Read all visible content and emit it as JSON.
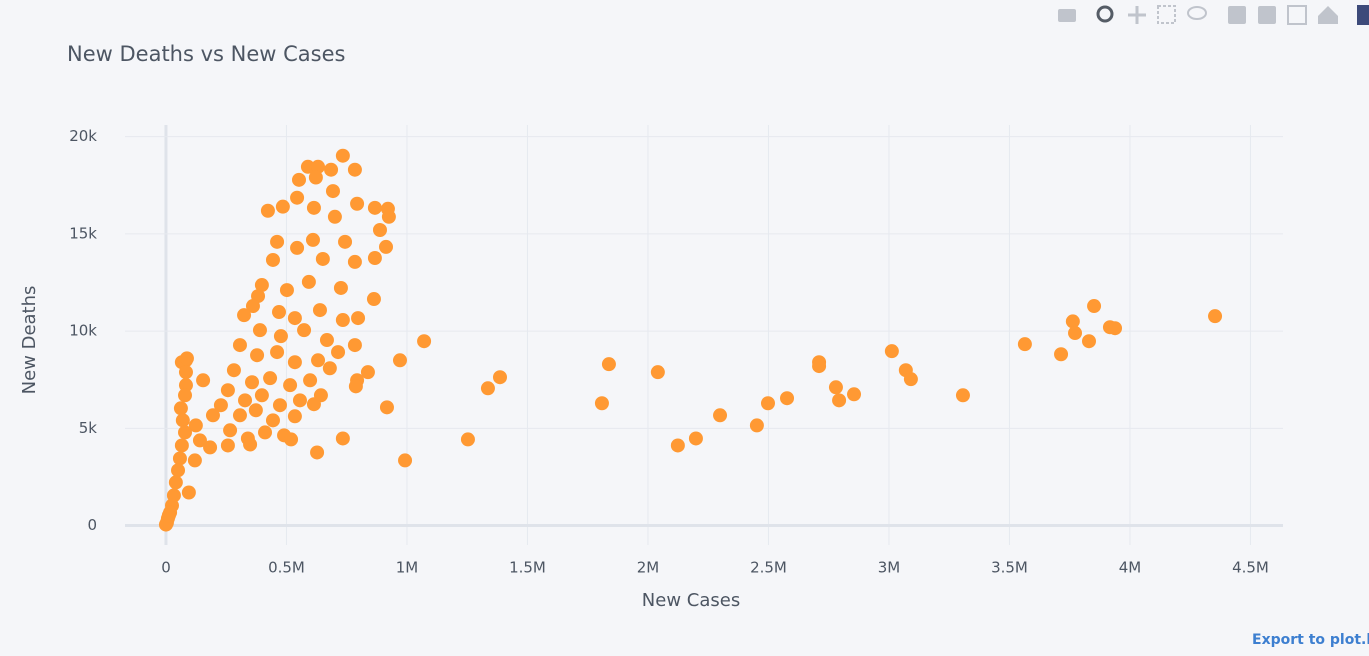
{
  "chart_data": {
    "type": "scatter",
    "title": "New Deaths vs New Cases",
    "x_label": "New Cases",
    "y_label": "New Deaths",
    "series": [
      {
        "name": "New Deaths",
        "color": "#ff9933",
        "x": [
          4353000,
          3851000,
          3763000,
          3772000,
          3917000,
          3938000,
          3830000,
          3564000,
          3714000,
          3307000,
          3012000,
          3070000,
          3091000,
          2855000,
          2780000,
          2793000,
          2710000,
          2710000,
          2577000,
          2498000,
          2452000,
          2299000,
          2199000,
          2124000,
          2041000,
          1838000,
          1809000,
          1386000,
          1336000,
          1253000,
          1071000,
          992000,
          971000,
          917000,
          734000,
          589000,
          631000,
          685000,
          784000,
          552000,
          622000,
          693000,
          544000,
          423000,
          485000,
          614000,
          793000,
          867000,
          921000,
          925000,
          701000,
          888000,
          461000,
          544000,
          610000,
          743000,
          913000,
          444000,
          651000,
          784000,
          867000,
          398000,
          502000,
          593000,
          726000,
          863000,
          382000,
          361000,
          469000,
          535000,
          639000,
          734000,
          797000,
          324000,
          390000,
          477000,
          573000,
          668000,
          784000,
          307000,
          378000,
          461000,
          535000,
          631000,
          714000,
          838000,
          282000,
          357000,
          432000,
          515000,
          598000,
          680000,
          793000,
          788000,
          257000,
          328000,
          398000,
          473000,
          556000,
          643000,
          614000,
          228000,
          307000,
          373000,
          444000,
          535000,
          195000,
          266000,
          340000,
          411000,
          490000,
          519000,
          627000,
          734000,
          124000,
          141000,
          183000,
          257000,
          349000,
          120000,
          154000,
          95000,
          83000,
          66000,
          87000,
          83000,
          83000,
          79000,
          62000,
          70000,
          79000,
          66000,
          58000,
          50000,
          41000,
          33000,
          25000,
          17000,
          8000,
          4000,
          0,
          12000
        ],
        "values": [
          10770,
          11290,
          10500,
          9900,
          10200,
          10150,
          9480,
          9330,
          8810,
          6700,
          8970,
          7990,
          7530,
          6750,
          7110,
          6440,
          8400,
          8200,
          6550,
          6290,
          5150,
          5670,
          4480,
          4120,
          7890,
          8300,
          6290,
          7630,
          7060,
          4430,
          9480,
          3350,
          8500,
          6080,
          19020,
          18450,
          18450,
          18300,
          18300,
          17780,
          17900,
          17200,
          16860,
          16190,
          16400,
          16340,
          16550,
          16340,
          16290,
          15880,
          15880,
          15200,
          14590,
          14280,
          14690,
          14590,
          14330,
          13660,
          13710,
          13560,
          13760,
          12370,
          12110,
          12530,
          12220,
          11650,
          11800,
          11290,
          10980,
          10670,
          11080,
          10570,
          10670,
          10820,
          10050,
          9740,
          10050,
          9540,
          9280,
          9280,
          8760,
          8920,
          8400,
          8500,
          8920,
          7890,
          7990,
          7370,
          7580,
          7220,
          7470,
          8090,
          7470,
          7160,
          6960,
          6440,
          6700,
          6190,
          6440,
          6700,
          6240,
          6190,
          5670,
          5930,
          5410,
          5620,
          5670,
          4900,
          4480,
          4790,
          4640,
          4430,
          3760,
          4480,
          5150,
          4380,
          4020,
          4120,
          4170,
          3350,
          7470,
          1700,
          8500,
          8400,
          8600,
          7890,
          7220,
          6700,
          6030,
          5410,
          4790,
          4120,
          3450,
          2840,
          2220,
          1550,
          1030,
          670,
          360,
          150,
          50,
          520
        ]
      }
    ],
    "xlim": [
      -170000,
      4635000
    ],
    "xticks": [
      0,
      {
        "value": 500000,
        "label": "0.5M"
      },
      {
        "value": 1000000,
        "label": "1M"
      },
      {
        "value": 1500000,
        "label": "1.5M"
      },
      {
        "value": 2000000,
        "label": "2M"
      },
      {
        "value": 2500000,
        "label": "2.5M"
      },
      {
        "value": 3000000,
        "label": "3M"
      },
      {
        "value": 3500000,
        "label": "3.5M"
      },
      {
        "value": 4000000,
        "label": "4M"
      },
      {
        "value": 4500000,
        "label": "4.5M"
      }
    ],
    "ylim": [
      -1000,
      20600
    ],
    "yticks": [
      0,
      {
        "value": 5000,
        "label": "5k"
      },
      {
        "value": 10000,
        "label": "10k"
      },
      {
        "value": 15000,
        "label": "15k"
      },
      {
        "value": 20000,
        "label": "20k"
      }
    ],
    "grid": true
  },
  "export_link": "Export to plot.ly »"
}
